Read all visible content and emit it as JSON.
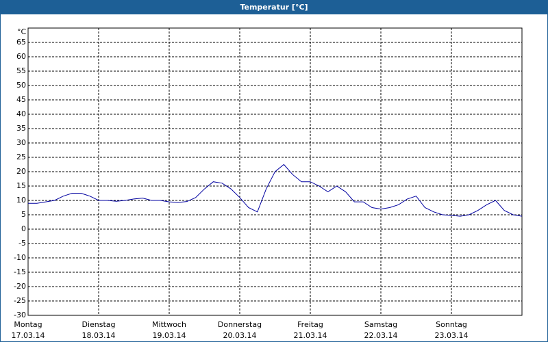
{
  "chart_data": {
    "type": "line",
    "title": "Temperatur [°C]",
    "y_unit": "°C",
    "days": [
      {
        "name": "Montag",
        "date": "17.03.14"
      },
      {
        "name": "Dienstag",
        "date": "18.03.14"
      },
      {
        "name": "Mittwoch",
        "date": "19.03.14"
      },
      {
        "name": "Donnerstag",
        "date": "20.03.14"
      },
      {
        "name": "Freitag",
        "date": "21.03.14"
      },
      {
        "name": "Samstag",
        "date": "22.03.14"
      },
      {
        "name": "Sonntag",
        "date": "23.03.14"
      }
    ],
    "series": [
      {
        "color": "#0000a0",
        "values": [
          9,
          9,
          9.5,
          10,
          11.5,
          12.5,
          12.5,
          11.5,
          10,
          10,
          9.7,
          10,
          10.5,
          10.8,
          10,
          10,
          9.5,
          9.3,
          9.6,
          11,
          14,
          16.5,
          16,
          14,
          11,
          7.5,
          6,
          14,
          20,
          22.5,
          19,
          16.5,
          16.5,
          15,
          13,
          15,
          13,
          9.5,
          9.5,
          7.5,
          7,
          7.5,
          8.5,
          10.5,
          11.5,
          7.5,
          6,
          5,
          4.8,
          4.5,
          5,
          6.5,
          8.5,
          10,
          6.5,
          5,
          4.5
        ]
      }
    ],
    "ylim": [
      -30,
      70
    ],
    "yticks": [
      -30,
      -25,
      -20,
      -15,
      -10,
      -5,
      0,
      5,
      10,
      15,
      20,
      25,
      30,
      35,
      40,
      45,
      50,
      55,
      60,
      65
    ],
    "grid": true
  }
}
